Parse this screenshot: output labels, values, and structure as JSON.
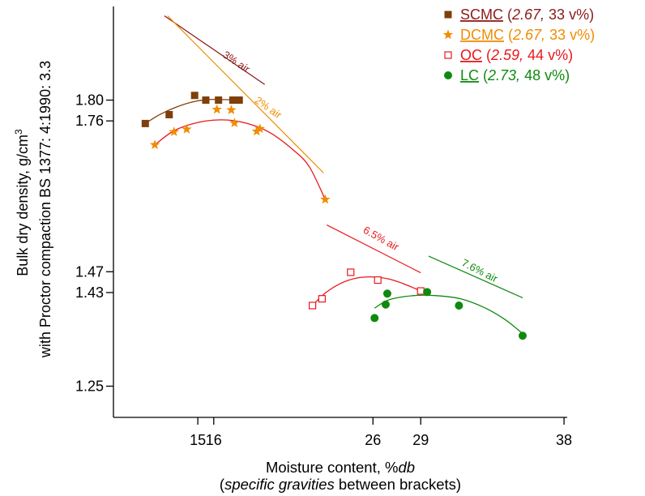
{
  "chart_data": {
    "type": "scatter",
    "xlabel": "Moisture content, %db",
    "xlabel_note": "(specific gravities between brackets)",
    "ylabel_line1": "Bulk dry density, g/cm3",
    "ylabel_line2": "with Proctor compaction BS 1377: 4:1990: 3.3",
    "xticks": [
      15,
      16,
      26,
      29,
      38
    ],
    "yticks": [
      1.25,
      1.43,
      1.47,
      1.76,
      1.8
    ],
    "xlim": [
      9.7,
      38.2
    ],
    "ylim": [
      1.19,
      1.98
    ],
    "legend_position": "top-right",
    "series": [
      {
        "name": "SCMC",
        "sg": "2.67",
        "vol": "33 v%)",
        "marker": "square-filled",
        "color": "#7f3f0a",
        "label_color": "#8b1a1a",
        "fit_color": "#7f3f0a",
        "points": [
          [
            11.7,
            1.755
          ],
          [
            13.2,
            1.772
          ],
          [
            14.8,
            1.809
          ],
          [
            15.5,
            1.8
          ],
          [
            16.3,
            1.8
          ],
          [
            17.2,
            1.8
          ],
          [
            17.6,
            1.8
          ]
        ],
        "fit": [
          [
            11.7,
            1.755
          ],
          [
            12.6,
            1.772
          ],
          [
            13.6,
            1.786
          ],
          [
            14.6,
            1.796
          ],
          [
            15.6,
            1.801
          ],
          [
            16.6,
            1.801
          ],
          [
            17.6,
            1.8
          ]
        ]
      },
      {
        "name": "DCMC",
        "sg": "2.67",
        "vol": "33 v%)",
        "marker": "star",
        "color": "#f08c00",
        "label_color": "#f08c00",
        "fit_color": "#e8181c",
        "points": [
          [
            12.3,
            1.714
          ],
          [
            13.5,
            1.739
          ],
          [
            14.3,
            1.744
          ],
          [
            16.2,
            1.782
          ],
          [
            17.1,
            1.781
          ],
          [
            17.3,
            1.756
          ],
          [
            18.7,
            1.74
          ],
          [
            18.9,
            1.745
          ],
          [
            23.0,
            1.609
          ]
        ],
        "fit": [
          [
            12.3,
            1.714
          ],
          [
            13.5,
            1.741
          ],
          [
            15.0,
            1.757
          ],
          [
            16.5,
            1.762
          ],
          [
            18.0,
            1.756
          ],
          [
            19.5,
            1.738
          ],
          [
            21.0,
            1.704
          ],
          [
            22.0,
            1.672
          ],
          [
            23.0,
            1.609
          ]
        ]
      },
      {
        "name": "OC",
        "sg": "2.59",
        "vol": "44 v%)",
        "marker": "square-open",
        "color": "#e8181c",
        "label_color": "#e8181c",
        "fit_color": "#e8181c",
        "points": [
          [
            22.2,
            1.405
          ],
          [
            22.8,
            1.418
          ],
          [
            24.6,
            1.469
          ],
          [
            26.3,
            1.454
          ],
          [
            29.0,
            1.433
          ]
        ],
        "fit": [
          [
            22.2,
            1.405
          ],
          [
            23.0,
            1.429
          ],
          [
            24.0,
            1.448
          ],
          [
            25.0,
            1.458
          ],
          [
            26.0,
            1.46
          ],
          [
            27.0,
            1.456
          ],
          [
            28.0,
            1.446
          ],
          [
            29.0,
            1.433
          ]
        ]
      },
      {
        "name": "LC",
        "sg": "2.73",
        "vol": "48 v%)",
        "marker": "circle-filled",
        "color": "#0f8a0f",
        "label_color": "#0f8a0f",
        "fit_color": "#0f8a0f",
        "points": [
          [
            26.1,
            1.381
          ],
          [
            26.8,
            1.407
          ],
          [
            26.9,
            1.428
          ],
          [
            29.4,
            1.431
          ],
          [
            31.4,
            1.405
          ],
          [
            35.4,
            1.347
          ]
        ],
        "fit": [
          [
            26.1,
            1.4
          ],
          [
            27.0,
            1.416
          ],
          [
            28.5,
            1.424
          ],
          [
            30.0,
            1.424
          ],
          [
            31.5,
            1.418
          ],
          [
            33.0,
            1.401
          ],
          [
            34.3,
            1.378
          ],
          [
            35.4,
            1.351
          ]
        ]
      }
    ],
    "air_lines": [
      {
        "label": "3% air",
        "color": "#8b1a1a",
        "from": [
          12.9,
          1.962
        ],
        "to": [
          19.2,
          1.83
        ],
        "label_at": [
          17.3,
          1.868
        ],
        "angle": 34
      },
      {
        "label": "2% air",
        "color": "#f08c00",
        "from": [
          13.1,
          1.962
        ],
        "to": [
          22.9,
          1.66
        ],
        "label_at": [
          19.3,
          1.78
        ],
        "angle": 35
      },
      {
        "label": "6.5% air",
        "color": "#e8181c",
        "from": [
          23.1,
          1.56
        ],
        "to": [
          29.0,
          1.468
        ],
        "label_at": [
          26.4,
          1.528
        ],
        "angle": 29
      },
      {
        "label": "7.6% air",
        "color": "#0f8a0f",
        "from": [
          29.5,
          1.5
        ],
        "to": [
          35.4,
          1.42
        ],
        "label_at": [
          32.6,
          1.466
        ],
        "angle": 27
      }
    ]
  }
}
